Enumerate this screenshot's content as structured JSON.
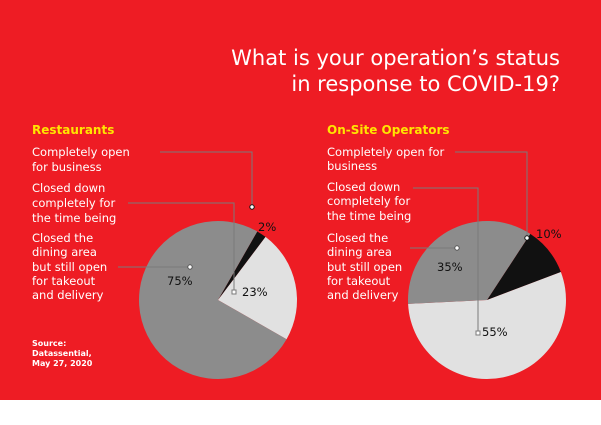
{
  "title": [
    "What is your operation’s status",
    "in response to COVID-19?"
  ],
  "source": [
    "Source:",
    "Datassential,",
    "May 27, 2020"
  ],
  "colors": {
    "background": "#ee1c24",
    "open": "#111111",
    "closed": "#e1e1e1",
    "takeout": "#8c8c8c",
    "section_title": "#ffe500"
  },
  "chart_data": [
    {
      "type": "pie",
      "title": "Restaurants",
      "categories": [
        "Completely open for business",
        "Closed down completely for the time being",
        "Closed the dining area but still open for takeout and delivery"
      ],
      "category_labels": [
        [
          "Completely open",
          "for business"
        ],
        [
          "Closed down",
          "completely for",
          "the time being"
        ],
        [
          "Closed the",
          "dining area",
          "but still open",
          "for takeout",
          "and delivery"
        ]
      ],
      "values": [
        2,
        23,
        75
      ],
      "value_labels": [
        "2%",
        "23%",
        "75%"
      ],
      "slice_colors": [
        "#111111",
        "#e1e1e1",
        "#8c8c8c"
      ]
    },
    {
      "type": "pie",
      "title": "On-Site Operators",
      "categories": [
        "Completely open for business",
        "Closed down completely for the time being",
        "Closed the dining area but still open for takeout and delivery"
      ],
      "category_labels": [
        [
          "Completely open for",
          "business"
        ],
        [
          "Closed down",
          "completely for",
          "the time being"
        ],
        [
          "Closed the",
          "dining area",
          "but still open",
          "for takeout",
          "and delivery"
        ]
      ],
      "values": [
        10,
        55,
        35
      ],
      "value_labels": [
        "10%",
        "55%",
        "35%"
      ],
      "slice_colors": [
        "#111111",
        "#e1e1e1",
        "#8c8c8c"
      ]
    }
  ]
}
